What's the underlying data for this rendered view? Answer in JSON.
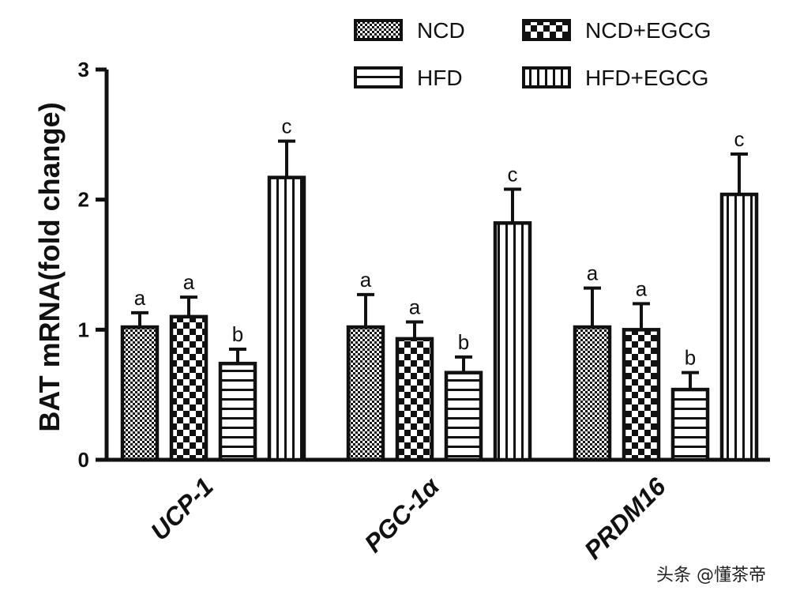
{
  "chart_data": {
    "type": "bar",
    "ylabel": "BAT mRNA(fold change)",
    "xlabel": "",
    "ylim": [
      0,
      3
    ],
    "yticks": [
      "0",
      "1",
      "2",
      "3"
    ],
    "categories": [
      "UCP-1",
      "PGC-1α",
      "PRDM16"
    ],
    "series": [
      {
        "name": "NCD",
        "values": [
          1.02,
          1.02,
          1.02
        ],
        "errors": [
          0.11,
          0.25,
          0.3
        ],
        "labels": [
          "a",
          "a",
          "a"
        ],
        "pattern": "fine-check"
      },
      {
        "name": "NCD+EGCG",
        "values": [
          1.1,
          0.93,
          1.0
        ],
        "errors": [
          0.15,
          0.13,
          0.2
        ],
        "labels": [
          "a",
          "a",
          "a"
        ],
        "pattern": "checker"
      },
      {
        "name": "HFD",
        "values": [
          0.74,
          0.67,
          0.54
        ],
        "errors": [
          0.11,
          0.12,
          0.13
        ],
        "labels": [
          "b",
          "b",
          "b"
        ],
        "pattern": "horizontal"
      },
      {
        "name": "HFD+EGCG",
        "values": [
          2.17,
          1.82,
          2.04
        ],
        "errors": [
          0.28,
          0.26,
          0.31
        ],
        "labels": [
          "c",
          "c",
          "c"
        ],
        "pattern": "vertical"
      }
    ],
    "legend_placement": "top-right",
    "grid": false
  },
  "watermark": "头条 @懂茶帝"
}
